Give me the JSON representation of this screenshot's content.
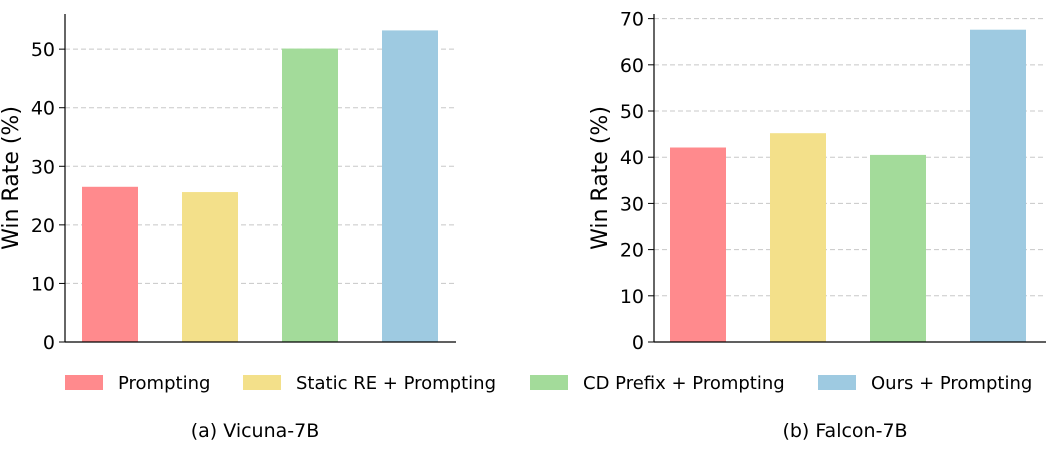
{
  "chart_data": [
    {
      "type": "bar",
      "categories": [
        "Prompting",
        "Static RE + Prompting",
        "CD Prefix + Prompting",
        "Ours + Prompting"
      ],
      "values": [
        26.5,
        25.6,
        50.1,
        53.2
      ],
      "ylabel": "Win Rate (%)",
      "ylim": [
        0,
        56
      ],
      "yticks": [
        0,
        10,
        20,
        30,
        40,
        50
      ],
      "grid": "y-dashed",
      "caption": "(a) Vicuna-7B"
    },
    {
      "type": "bar",
      "categories": [
        "Prompting",
        "Static RE + Prompting",
        "CD Prefix + Prompting",
        "Ours + Prompting"
      ],
      "values": [
        42.1,
        45.2,
        40.5,
        67.6
      ],
      "ylabel": "Win Rate (%)",
      "ylim": [
        0,
        71
      ],
      "yticks": [
        0,
        10,
        20,
        30,
        40,
        50,
        60,
        70
      ],
      "grid": "y-dashed",
      "caption": "(b) Falcon-7B"
    }
  ],
  "legend": {
    "placement": "bottom",
    "items": [
      {
        "label": "Prompting",
        "color": "#FF8A8D"
      },
      {
        "label": "Static RE + Prompting",
        "color": "#F3E08A"
      },
      {
        "label": "CD Prefix + Prompting",
        "color": "#A3DB9A"
      },
      {
        "label": "Ours + Prompting",
        "color": "#9ECAE1"
      }
    ]
  }
}
